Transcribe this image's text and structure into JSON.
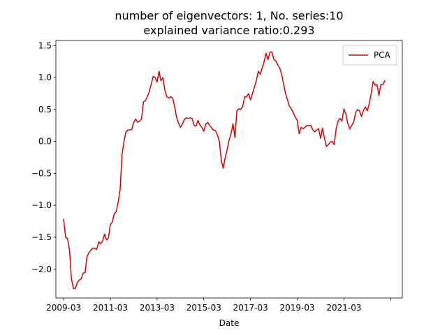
{
  "chart_data": {
    "type": "line",
    "title": [
      "number of eigenvectors: 1, No. series:10",
      "explained variance ratio:0.293"
    ],
    "xlabel": "Date",
    "ylabel": "",
    "xtick_labels": [
      "2009-03",
      "2011-03",
      "2013-03",
      "2015-03",
      "2017-03",
      "2019-03",
      "2021-03",
      ""
    ],
    "yticks": [
      -2.0,
      -1.5,
      -1.0,
      -0.5,
      0.0,
      0.5,
      1.0,
      1.5
    ],
    "ytick_labels": [
      "−2.0",
      "−1.5",
      "−1.0",
      "−0.5",
      "0.0",
      "0.5",
      "1.0",
      "1.5"
    ],
    "xlim": [
      "2008-11",
      "2023-09"
    ],
    "ylim": [
      -2.45,
      1.58
    ],
    "legend": {
      "position": "upper right"
    },
    "grid": false,
    "series": [
      {
        "name": "PCA",
        "color": "#e00000",
        "x_start": "2009-03",
        "frequency": "monthly",
        "values": [
          -1.22,
          -1.5,
          -1.52,
          -1.7,
          -2.15,
          -2.3,
          -2.3,
          -2.21,
          -2.17,
          -2.15,
          -2.06,
          -2.05,
          -1.8,
          -1.74,
          -1.7,
          -1.67,
          -1.67,
          -1.69,
          -1.57,
          -1.6,
          -1.56,
          -1.45,
          -1.54,
          -1.51,
          -1.3,
          -1.26,
          -1.13,
          -1.1,
          -0.95,
          -0.75,
          -0.2,
          0.0,
          0.15,
          0.18,
          0.18,
          0.19,
          0.3,
          0.35,
          0.3,
          0.32,
          0.35,
          0.62,
          0.64,
          0.7,
          0.78,
          0.9,
          1.02,
          1.0,
          0.93,
          1.1,
          0.95,
          1.0,
          0.8,
          0.7,
          0.68,
          0.7,
          0.68,
          0.55,
          0.38,
          0.29,
          0.22,
          0.27,
          0.34,
          0.37,
          0.36,
          0.37,
          0.36,
          0.25,
          0.24,
          0.33,
          0.26,
          0.22,
          0.16,
          0.27,
          0.3,
          0.25,
          0.21,
          0.18,
          0.17,
          0.1,
          0.0,
          -0.3,
          -0.42,
          -0.25,
          -0.13,
          0.02,
          0.12,
          0.28,
          0.06,
          0.48,
          0.51,
          0.5,
          0.55,
          0.7,
          0.7,
          0.75,
          0.65,
          0.75,
          0.85,
          0.95,
          1.1,
          1.05,
          1.15,
          1.25,
          1.38,
          1.28,
          1.4,
          1.4,
          1.28,
          1.26,
          1.2,
          1.15,
          1.05,
          0.9,
          0.75,
          0.65,
          0.55,
          0.51,
          0.45,
          0.38,
          0.33,
          0.12,
          0.22,
          0.2,
          0.22,
          0.25,
          0.25,
          0.25,
          0.18,
          0.15,
          0.18,
          0.2,
          0.05,
          0.21,
          0.05,
          -0.08,
          -0.05,
          -0.01,
          0.0,
          -0.05,
          0.2,
          0.32,
          0.36,
          0.32,
          0.51,
          0.43,
          0.28,
          0.2,
          0.25,
          0.3,
          0.45,
          0.5,
          0.48,
          0.39,
          0.48,
          0.54,
          0.48,
          0.59,
          0.75,
          0.94,
          0.88,
          0.89,
          0.72,
          0.89,
          0.89,
          0.95
        ]
      }
    ]
  }
}
